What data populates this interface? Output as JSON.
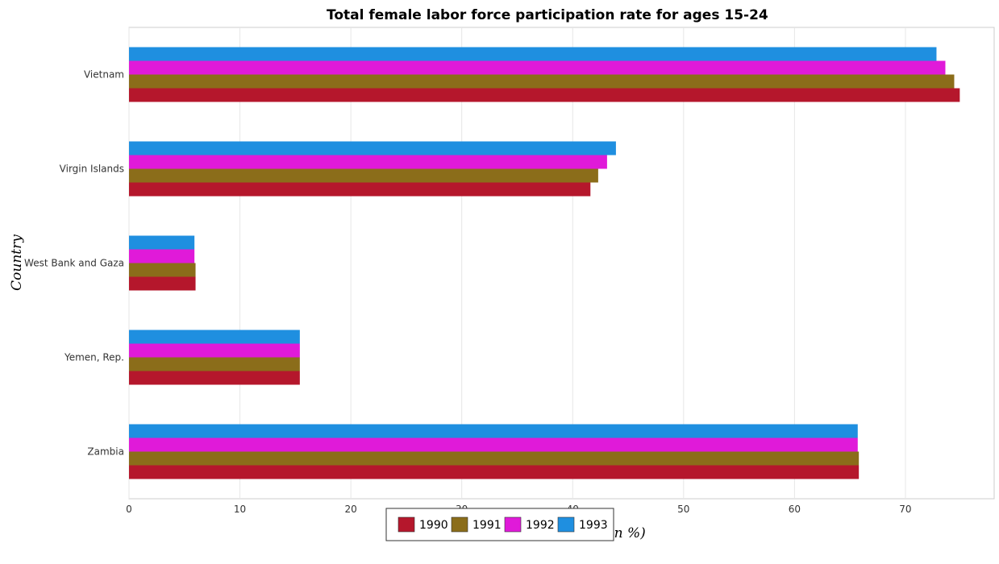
{
  "chart_data": {
    "type": "bar",
    "orientation": "horizontal",
    "title": "Total female labor force participation rate for ages 15-24",
    "xlabel": "Total Labor Force (in %)",
    "ylabel": "Country",
    "xlim": [
      0,
      78
    ],
    "xticks": [
      0,
      10,
      20,
      30,
      40,
      50,
      60,
      70
    ],
    "grid": true,
    "legend_position": "bottom-center",
    "categories": [
      "Vietnam",
      "Virgin Islands",
      "West Bank and Gaza",
      "Yemen, Rep.",
      "Zambia"
    ],
    "series": [
      {
        "name": "1990",
        "color": "#b5172c",
        "values": [
          74.9,
          41.6,
          6.0,
          15.4,
          65.8
        ]
      },
      {
        "name": "1991",
        "color": "#8b6d1a",
        "values": [
          74.4,
          42.3,
          6.0,
          15.4,
          65.8
        ]
      },
      {
        "name": "1992",
        "color": "#e01ad9",
        "values": [
          73.6,
          43.1,
          5.9,
          15.4,
          65.7
        ]
      },
      {
        "name": "1993",
        "color": "#1f8fe0",
        "values": [
          72.8,
          43.9,
          5.9,
          15.4,
          65.7
        ]
      }
    ]
  }
}
